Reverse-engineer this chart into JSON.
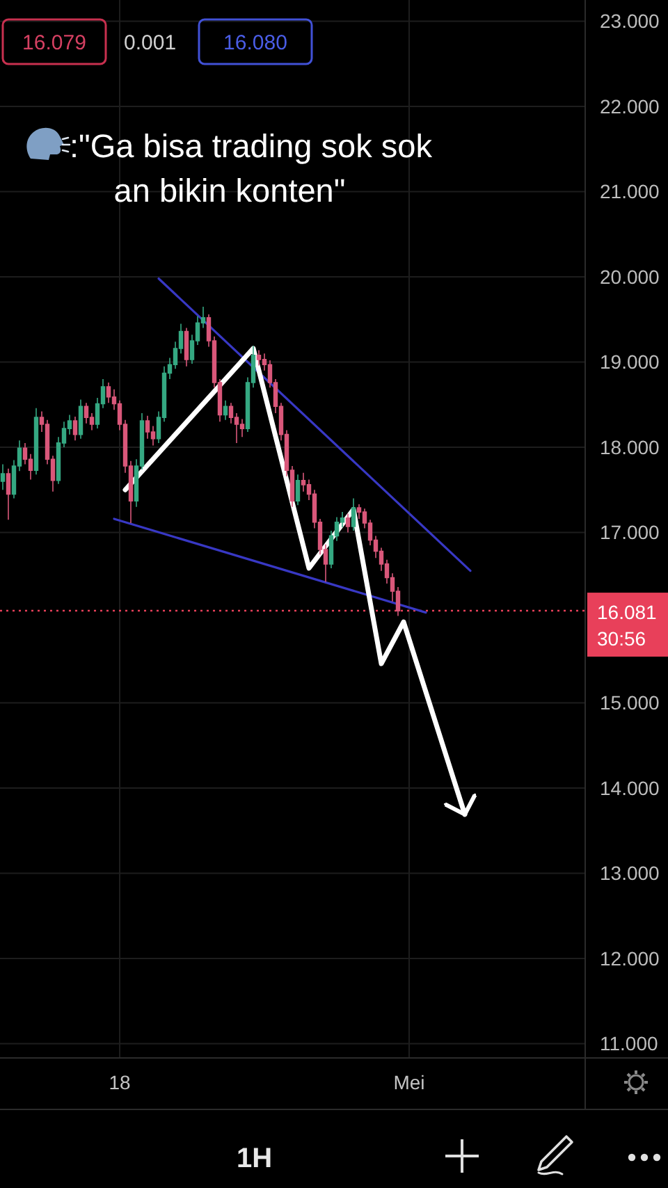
{
  "chart_data": {
    "type": "candlestick",
    "title": ":\"Ga bisa trading sok sok an bikin konten\"",
    "annotations": [
      "16.079",
      "0.001",
      "16.080",
      "1H"
    ],
    "categories": [
      null,
      null,
      null,
      null,
      null,
      null,
      null,
      null,
      null,
      null,
      null,
      null,
      null,
      null,
      null,
      null,
      null,
      null,
      null,
      null,
      null,
      "18",
      null,
      null,
      null,
      null,
      null,
      null,
      null,
      null,
      null,
      null,
      null,
      null,
      null,
      null,
      null,
      null,
      null,
      null,
      null,
      null,
      null,
      null,
      null,
      null,
      null,
      null,
      null,
      null,
      null,
      null,
      null,
      null,
      null,
      null,
      null,
      null,
      null,
      null,
      null,
      null,
      null,
      null,
      null,
      null,
      null,
      null,
      null,
      null,
      null,
      null,
      null,
      "Mei",
      null,
      null,
      null,
      null,
      null,
      null,
      null,
      null,
      null,
      null,
      null,
      null,
      null,
      null,
      null,
      null,
      null,
      null,
      null,
      null,
      null,
      null,
      null,
      null,
      null,
      null,
      null,
      null,
      null,
      null,
      null
    ],
    "ohlc": [
      [
        17.6,
        17.8,
        17.5,
        17.69
      ],
      [
        17.69,
        17.75,
        17.15,
        17.45
      ],
      [
        17.45,
        17.85,
        17.4,
        17.78
      ],
      [
        17.78,
        18.08,
        17.72,
        17.99
      ],
      [
        17.99,
        18.05,
        17.8,
        17.86
      ],
      [
        17.86,
        17.92,
        17.62,
        17.73
      ],
      [
        17.73,
        18.46,
        17.68,
        18.35
      ],
      [
        18.35,
        18.42,
        18.18,
        18.27
      ],
      [
        18.27,
        18.32,
        17.8,
        17.86
      ],
      [
        17.86,
        17.9,
        17.48,
        17.61
      ],
      [
        17.61,
        18.12,
        17.57,
        18.05
      ],
      [
        18.05,
        18.3,
        18.0,
        18.22
      ],
      [
        18.22,
        18.38,
        18.15,
        18.31
      ],
      [
        18.31,
        18.36,
        18.08,
        18.15
      ],
      [
        18.15,
        18.56,
        18.1,
        18.48
      ],
      [
        18.48,
        18.52,
        18.28,
        18.35
      ],
      [
        18.35,
        18.4,
        18.2,
        18.27
      ],
      [
        18.27,
        18.58,
        18.22,
        18.51
      ],
      [
        18.51,
        18.8,
        18.46,
        18.71
      ],
      [
        18.71,
        18.76,
        18.52,
        18.59
      ],
      [
        18.59,
        18.68,
        18.44,
        18.51
      ],
      [
        18.51,
        18.55,
        18.2,
        18.27
      ],
      [
        18.27,
        18.32,
        17.7,
        17.78
      ],
      [
        17.78,
        17.84,
        17.11,
        17.37
      ],
      [
        17.37,
        17.86,
        17.3,
        17.78
      ],
      [
        17.78,
        18.4,
        17.74,
        18.31
      ],
      [
        18.31,
        18.37,
        18.1,
        18.18
      ],
      [
        18.18,
        18.25,
        18.02,
        18.1
      ],
      [
        18.1,
        18.42,
        18.05,
        18.35
      ],
      [
        18.35,
        18.95,
        18.3,
        18.87
      ],
      [
        18.87,
        19.05,
        18.8,
        18.97
      ],
      [
        18.97,
        19.24,
        18.92,
        19.16
      ],
      [
        19.16,
        19.45,
        19.1,
        19.36
      ],
      [
        19.36,
        19.4,
        18.95,
        19.03
      ],
      [
        19.03,
        19.32,
        18.98,
        19.25
      ],
      [
        19.25,
        19.54,
        19.2,
        19.46
      ],
      [
        19.46,
        19.65,
        19.4,
        19.52
      ],
      [
        19.52,
        19.56,
        19.18,
        19.25
      ],
      [
        19.25,
        19.3,
        18.7,
        18.76
      ],
      [
        18.76,
        18.8,
        18.3,
        18.38
      ],
      [
        18.38,
        18.55,
        18.32,
        18.48
      ],
      [
        18.48,
        18.52,
        18.28,
        18.35
      ],
      [
        18.35,
        18.4,
        18.05,
        18.27
      ],
      [
        18.27,
        18.33,
        18.12,
        18.22
      ],
      [
        18.22,
        18.82,
        18.18,
        18.76
      ],
      [
        18.76,
        19.19,
        18.7,
        19.08
      ],
      [
        19.08,
        19.14,
        18.96,
        19.03
      ],
      [
        19.03,
        19.1,
        18.9,
        18.97
      ],
      [
        18.97,
        19.02,
        18.7,
        18.76
      ],
      [
        18.76,
        18.8,
        18.4,
        18.48
      ],
      [
        18.48,
        18.52,
        18.08,
        18.15
      ],
      [
        18.15,
        18.2,
        17.66,
        17.73
      ],
      [
        17.73,
        17.78,
        17.3,
        17.37
      ],
      [
        17.37,
        17.68,
        17.32,
        17.61
      ],
      [
        17.61,
        17.7,
        17.48,
        17.56
      ],
      [
        17.56,
        17.62,
        17.38,
        17.45
      ],
      [
        17.45,
        17.5,
        17.05,
        17.12
      ],
      [
        17.12,
        17.16,
        16.74,
        16.8
      ],
      [
        16.8,
        16.86,
        16.42,
        16.63
      ],
      [
        16.63,
        17.02,
        16.58,
        16.96
      ],
      [
        16.96,
        17.18,
        16.9,
        17.12
      ],
      [
        17.12,
        17.24,
        17.06,
        17.17
      ],
      [
        17.17,
        17.22,
        17.0,
        17.07
      ],
      [
        17.07,
        17.4,
        17.02,
        17.29
      ],
      [
        17.29,
        17.33,
        17.16,
        17.24
      ],
      [
        17.24,
        17.28,
        17.05,
        17.11
      ],
      [
        17.11,
        17.15,
        16.85,
        16.91
      ],
      [
        16.91,
        16.96,
        16.7,
        16.78
      ],
      [
        16.78,
        16.82,
        16.55,
        16.63
      ],
      [
        16.63,
        16.68,
        16.4,
        16.47
      ],
      [
        16.47,
        16.52,
        16.19,
        16.31
      ],
      [
        16.31,
        16.36,
        16.02,
        16.08
      ],
      null,
      null,
      null,
      null,
      null,
      null,
      null,
      null,
      null,
      null,
      null,
      null,
      null,
      null,
      null,
      null,
      null,
      null,
      null,
      null,
      null,
      null,
      null,
      null,
      null,
      null,
      null,
      null,
      null,
      null,
      null,
      null,
      null
    ],
    "colors": [
      "#35a882",
      "#d9577a",
      "#35a882",
      "#35a882",
      "#d9577a",
      "#d9577a",
      "#35a882",
      "#d9577a",
      "#d9577a",
      "#d9577a",
      "#35a882",
      "#35a882",
      "#35a882",
      "#d9577a",
      "#35a882",
      "#d9577a",
      "#d9577a",
      "#35a882",
      "#35a882",
      "#d9577a",
      "#d9577a",
      "#d9577a",
      "#d9577a",
      "#d9577a",
      "#35a882",
      "#35a882",
      "#d9577a",
      "#d9577a",
      "#35a882",
      "#35a882",
      "#35a882",
      "#35a882",
      "#35a882",
      "#d9577a",
      "#35a882",
      "#35a882",
      "#35a882",
      "#d9577a",
      "#d9577a",
      "#d9577a",
      "#35a882",
      "#d9577a",
      "#d9577a",
      "#d9577a",
      "#35a882",
      "#35a882",
      "#d9577a",
      "#d9577a",
      "#d9577a",
      "#d9577a",
      "#d9577a",
      "#d9577a",
      "#d9577a",
      "#35a882",
      "#d9577a",
      "#d9577a",
      "#d9577a",
      "#d9577a",
      "#d9577a",
      "#35a882",
      "#35a882",
      "#35a882",
      "#d9577a",
      "#35a882",
      "#d9577a",
      "#d9577a",
      "#d9577a",
      "#d9577a",
      "#d9577a",
      "#d9577a",
      "#d9577a",
      "#d9577a",
      null,
      null,
      null,
      null,
      null,
      null,
      null,
      null,
      null,
      null,
      null,
      null,
      null,
      null,
      null,
      null,
      null,
      null,
      null,
      null,
      null,
      null,
      null,
      null,
      null,
      null,
      null,
      null,
      null,
      null,
      null,
      null,
      null
    ],
    "series": [
      {
        "type": "line",
        "color": "#3838c4",
        "values": [
          null,
          null,
          null,
          null,
          null,
          null,
          null,
          null,
          null,
          null,
          null,
          null,
          null,
          null,
          null,
          null,
          null,
          null,
          null,
          null,
          null,
          null,
          null,
          null,
          null,
          null,
          null,
          null,
          19.98,
          null,
          null,
          null,
          null,
          null,
          null,
          null,
          null,
          null,
          null,
          null,
          null,
          null,
          null,
          null,
          null,
          null,
          null,
          null,
          null,
          null,
          null,
          null,
          null,
          null,
          null,
          null,
          null,
          null,
          null,
          null,
          null,
          null,
          null,
          null,
          null,
          null,
          null,
          null,
          null,
          null,
          null,
          null,
          null,
          null,
          null,
          null,
          null,
          null,
          null,
          null,
          null,
          null,
          null,
          null,
          16.55,
          null,
          null,
          null,
          null,
          null,
          null,
          null,
          null,
          null,
          null,
          null,
          null,
          null,
          null,
          null,
          null,
          null,
          null,
          null,
          null
        ]
      },
      {
        "type": "line",
        "color": "#3838c4",
        "values": [
          null,
          null,
          null,
          null,
          null,
          null,
          null,
          null,
          null,
          null,
          null,
          null,
          null,
          null,
          null,
          null,
          null,
          null,
          null,
          null,
          17.16,
          null,
          null,
          null,
          null,
          null,
          null,
          null,
          null,
          null,
          null,
          null,
          null,
          null,
          null,
          null,
          null,
          null,
          null,
          null,
          null,
          null,
          null,
          null,
          null,
          null,
          null,
          null,
          null,
          null,
          null,
          null,
          null,
          null,
          null,
          null,
          null,
          null,
          null,
          null,
          null,
          null,
          null,
          null,
          null,
          null,
          null,
          null,
          null,
          null,
          null,
          null,
          null,
          null,
          null,
          null,
          16.06,
          null,
          null,
          null,
          null,
          null,
          null,
          null,
          null,
          null,
          null,
          null,
          null,
          null,
          null,
          null,
          null,
          null,
          null,
          null,
          null,
          null,
          null,
          null,
          null,
          null,
          null,
          null,
          null
        ]
      },
      {
        "type": "line",
        "color": "#ffffff",
        "values": [
          null,
          null,
          null,
          null,
          null,
          null,
          null,
          null,
          null,
          null,
          null,
          null,
          null,
          null,
          null,
          null,
          null,
          null,
          null,
          null,
          null,
          null,
          17.5,
          null,
          null,
          null,
          null,
          null,
          null,
          null,
          null,
          null,
          null,
          null,
          null,
          null,
          null,
          null,
          null,
          null,
          null,
          null,
          null,
          null,
          null,
          19.16,
          null,
          null,
          null,
          null,
          null,
          null,
          null,
          null,
          null,
          16.58,
          null,
          null,
          null,
          null,
          null,
          null,
          null,
          17.27,
          null,
          null,
          null,
          null,
          15.46,
          null,
          null,
          null,
          15.95,
          null,
          null,
          null,
          null,
          null,
          null,
          null,
          null,
          null,
          null,
          13.69,
          null,
          null,
          null,
          null,
          null,
          null,
          null,
          null,
          null,
          null,
          null,
          null,
          null,
          null,
          null,
          null,
          null,
          null,
          null,
          null,
          null
        ]
      }
    ],
    "ylim": [
      10.84,
      23.25
    ],
    "yticks": [
      {
        "value": 11,
        "label": "11.000"
      },
      {
        "value": 12,
        "label": "12.000"
      },
      {
        "value": 13,
        "label": "13.000"
      },
      {
        "value": 14,
        "label": "14.000"
      },
      {
        "value": 15,
        "label": "15.000"
      },
      {
        "value": 17,
        "label": "17.000"
      },
      {
        "value": 18,
        "label": "18.000"
      },
      {
        "value": 19,
        "label": "19.000"
      },
      {
        "value": 20,
        "label": "20.000"
      },
      {
        "value": 21,
        "label": "21.000"
      },
      {
        "value": 22,
        "label": "22.000"
      },
      {
        "value": 23,
        "label": "23.000"
      }
    ],
    "grid": true,
    "ref_lines": [
      {
        "axis": "y",
        "value": 16.081,
        "label": "16.081\n30:56",
        "color": "#e8405a",
        "line_style": "dotted"
      }
    ]
  }
}
